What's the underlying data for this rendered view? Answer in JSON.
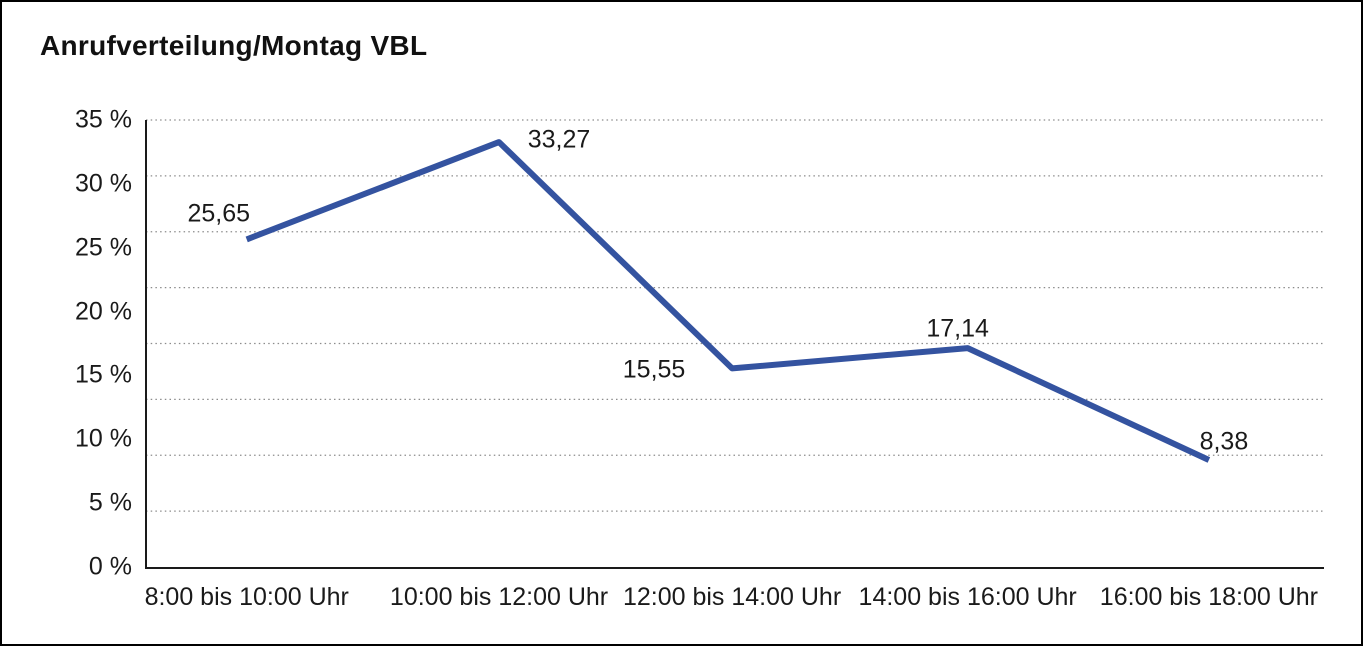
{
  "window": {
    "background_color": "#ffffff",
    "border_color": "#000000"
  },
  "chart_data": {
    "type": "line",
    "title": "Anrufverteilung/Montag VBL",
    "categories": [
      "8:00 bis 10:00 Uhr",
      "10:00 bis 12:00 Uhr",
      "12:00 bis 14:00 Uhr",
      "14:00 bis 16:00 Uhr",
      "16:00 bis 18:00 Uhr"
    ],
    "series": [
      {
        "name": "Anrufverteilung Montag VBL",
        "values": [
          25.65,
          33.27,
          15.55,
          17.14,
          8.38
        ],
        "point_labels": [
          "25,65",
          "33,27",
          "15,55",
          "17,14",
          "8,38"
        ],
        "color": "#3453A0"
      }
    ],
    "xlabel": "",
    "ylabel": "",
    "ylim": [
      0,
      35
    ],
    "y_tick_step": 5,
    "y_tick_labels": [
      "0 %",
      "5 %",
      "10 %",
      "15 %",
      "20 %",
      "25 %",
      "30 %",
      "35 %"
    ],
    "grid": "horizontal-dotted",
    "gridline_color": "#8c8c8c",
    "axis_color": "#1a1a1a",
    "legend_position": "none"
  }
}
